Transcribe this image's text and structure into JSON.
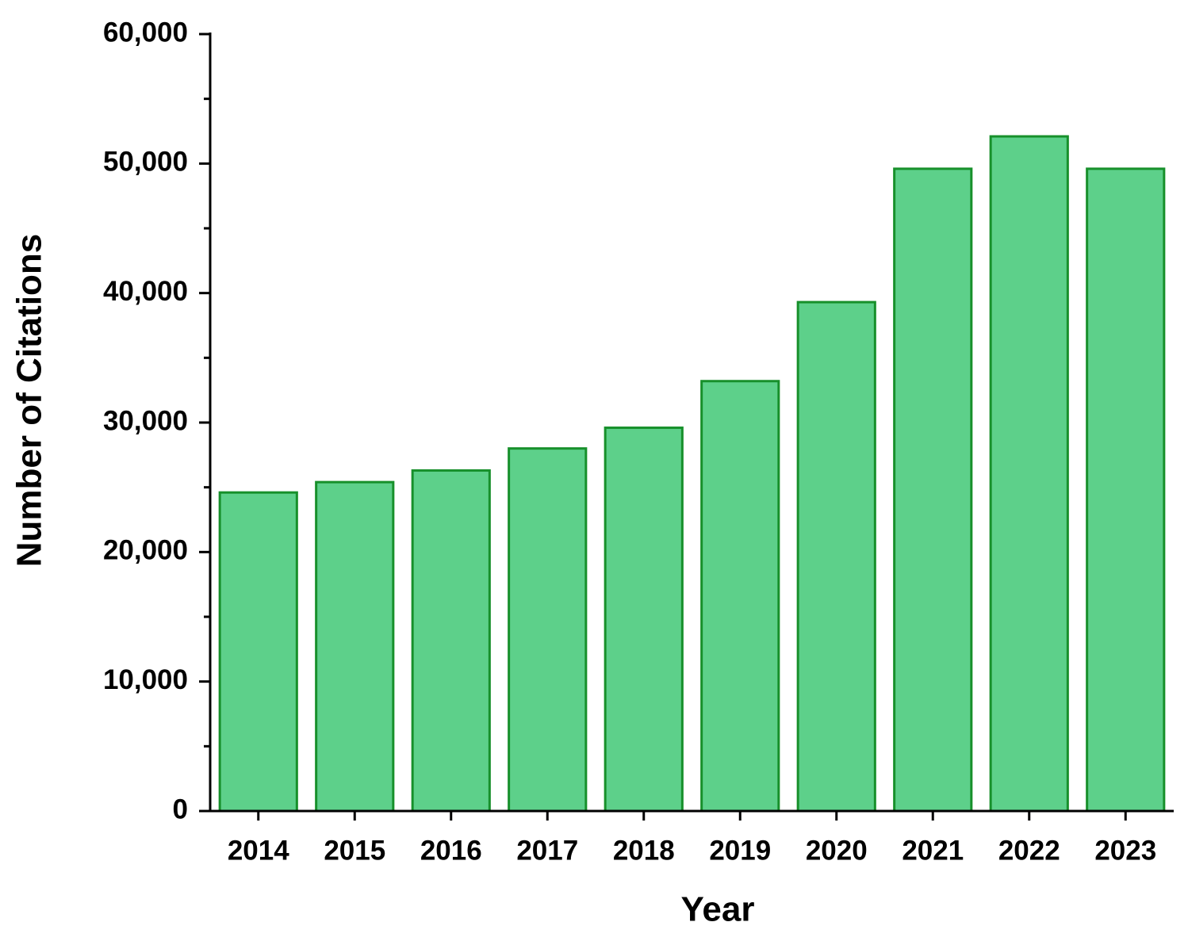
{
  "chart_data": {
    "type": "bar",
    "x_label": "Year",
    "y_label": "Number of Citations",
    "categories": [
      "2014",
      "2015",
      "2016",
      "2017",
      "2018",
      "2019",
      "2020",
      "2021",
      "2022",
      "2023"
    ],
    "values": [
      24600,
      25400,
      26300,
      28000,
      29600,
      33200,
      39300,
      49600,
      52100,
      49600
    ],
    "color": "#5dd08a",
    "edge_color": "#17902b",
    "ylim": [
      0,
      60000
    ],
    "yticks": [
      0,
      {
        "value": 10000,
        "label": "10,000"
      },
      {
        "value": 20000,
        "label": "20,000"
      },
      {
        "value": 30000,
        "label": "30,000"
      },
      {
        "value": 40000,
        "label": "40,000"
      },
      {
        "value": 50000,
        "label": "50,000"
      },
      {
        "value": 60000,
        "label": "60,000"
      }
    ],
    "minor_yticks": [
      5000,
      15000,
      25000,
      35000,
      45000,
      55000
    ],
    "grid": false
  }
}
